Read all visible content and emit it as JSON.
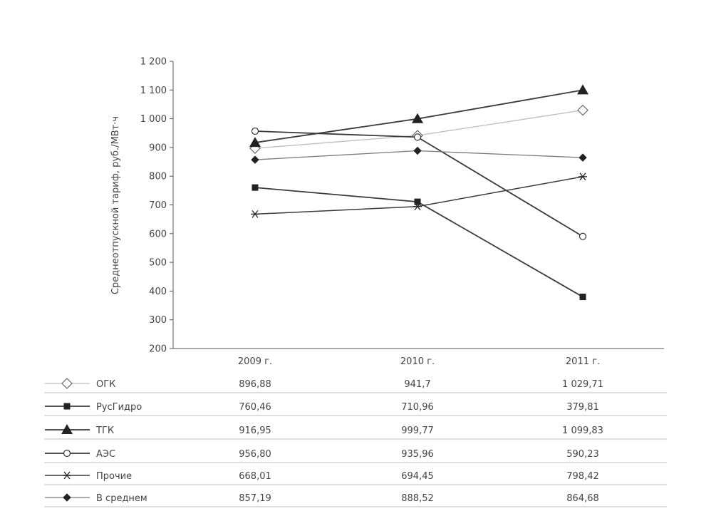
{
  "chart_data": {
    "type": "line",
    "ylabel": "Среднеотпускной тариф, руб./МВт·ч",
    "ylim": [
      200,
      1200
    ],
    "yticks": [
      "1 200",
      "1 100",
      "1 000",
      "900",
      "800",
      "700",
      "600",
      "500",
      "400",
      "300",
      "200"
    ],
    "ytick_values": [
      1200,
      1100,
      1000,
      900,
      800,
      700,
      600,
      500,
      400,
      300,
      200
    ],
    "categories": [
      "2009 г.",
      "2010 г.",
      "2011 г."
    ],
    "grid": false,
    "legend": "table-below",
    "series": [
      {
        "name": "ОГК",
        "marker": "diamond-open",
        "color": "#bdbdbd",
        "values": [
          896.88,
          941.7,
          1029.71
        ],
        "labels": [
          "896,88",
          "941,7",
          "1 029,71"
        ]
      },
      {
        "name": "РусГидро",
        "marker": "square",
        "color": "#3a3a3a",
        "values": [
          760.46,
          710.96,
          379.81
        ],
        "labels": [
          "760,46",
          "710,96",
          "379,81"
        ]
      },
      {
        "name": "ТГК",
        "marker": "triangle",
        "color": "#3a3a3a",
        "values": [
          916.95,
          999.77,
          1099.83
        ],
        "labels": [
          "916,95",
          "999,77",
          "1 099,83"
        ]
      },
      {
        "name": "АЭС",
        "marker": "circle-open",
        "color": "#3a3a3a",
        "values": [
          956.8,
          935.96,
          590.23
        ],
        "labels": [
          "956,80",
          "935,96",
          "590,23"
        ]
      },
      {
        "name": "Прочие",
        "marker": "star",
        "color": "#3a3a3a",
        "values": [
          668.01,
          694.45,
          798.42
        ],
        "labels": [
          "668,01",
          "694,45",
          "798,42"
        ]
      },
      {
        "name": "В среднем",
        "marker": "diamond",
        "color": "#7a7a7a",
        "values": [
          857.19,
          888.52,
          864.68
        ],
        "labels": [
          "857,19",
          "888,52",
          "864,68"
        ]
      }
    ]
  }
}
